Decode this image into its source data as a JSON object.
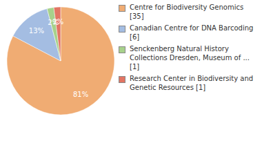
{
  "chart_data": {
    "type": "pie",
    "categories": [
      "Centre for Biodiversity Genomics [35]",
      "Canadian Centre for DNA Barcoding [6]",
      "Senckenberg Natural History Collections Dresden, Museum of ... [1]",
      "Research Center in Biodiversity and Genetic Resources [1]"
    ],
    "values": [
      81,
      13,
      2,
      2
    ],
    "value_labels": [
      "81%",
      "13%",
      "2%",
      "2%"
    ],
    "data_labels": true,
    "colors": [
      "#f0ac73",
      "#a4bde2",
      "#a7d18b",
      "#e27563"
    ],
    "legend": "right"
  }
}
